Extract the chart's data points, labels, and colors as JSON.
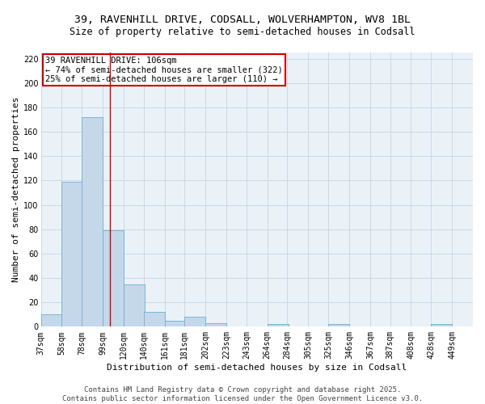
{
  "title1": "39, RAVENHILL DRIVE, CODSALL, WOLVERHAMPTON, WV8 1BL",
  "title2": "Size of property relative to semi-detached houses in Codsall",
  "xlabel": "Distribution of semi-detached houses by size in Codsall",
  "ylabel": "Number of semi-detached properties",
  "annotation_line1": "39 RAVENHILL DRIVE: 106sqm",
  "annotation_line2": "← 74% of semi-detached houses are smaller (322)",
  "annotation_line3": "25% of semi-detached houses are larger (110) →",
  "property_size": 106,
  "bin_edges": [
    37,
    58,
    78,
    99,
    120,
    140,
    161,
    181,
    202,
    223,
    243,
    264,
    284,
    305,
    325,
    346,
    367,
    387,
    408,
    428,
    449
  ],
  "bar_heights": [
    10,
    119,
    172,
    79,
    35,
    12,
    5,
    8,
    3,
    0,
    0,
    2,
    0,
    0,
    2,
    0,
    0,
    0,
    0,
    2,
    0
  ],
  "bar_color": "#c5d8ea",
  "bar_edge_color": "#6aaed6",
  "red_line_color": "#cc0000",
  "annotation_box_edge_color": "#cc0000",
  "grid_color": "#c8d8e8",
  "background_color": "#eaf2f8",
  "ylim": [
    0,
    225
  ],
  "yticks": [
    0,
    20,
    40,
    60,
    80,
    100,
    120,
    140,
    160,
    180,
    200,
    220
  ],
  "tick_labels": [
    "37sqm",
    "58sqm",
    "78sqm",
    "99sqm",
    "120sqm",
    "140sqm",
    "161sqm",
    "181sqm",
    "202sqm",
    "223sqm",
    "243sqm",
    "264sqm",
    "284sqm",
    "305sqm",
    "325sqm",
    "346sqm",
    "367sqm",
    "387sqm",
    "408sqm",
    "428sqm",
    "449sqm"
  ],
  "footer": "Contains HM Land Registry data © Crown copyright and database right 2025.\nContains public sector information licensed under the Open Government Licence v3.0.",
  "title_fontsize": 9.5,
  "subtitle_fontsize": 8.5,
  "axis_label_fontsize": 8,
  "tick_fontsize": 7,
  "annotation_fontsize": 7.5,
  "footer_fontsize": 6.5
}
